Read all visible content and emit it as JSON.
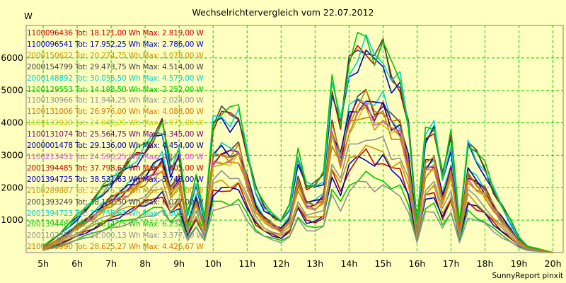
{
  "chart_data": {
    "type": "line",
    "title": "Wechselrichtervergleich vom 22.07.2012",
    "ylabel": "W",
    "credit": "SunnyReport pinxit",
    "xlim": [
      4.5,
      20.3
    ],
    "ylim": [
      0,
      7000
    ],
    "x_ticks": [
      5,
      6,
      7,
      8,
      9,
      10,
      11,
      12,
      13,
      14,
      15,
      16,
      17,
      18,
      19,
      20
    ],
    "x_tick_labels": [
      "5h",
      "6h",
      "7h",
      "8h",
      "9h",
      "10h",
      "11h",
      "12h",
      "13h",
      "14h",
      "15h",
      "16h",
      "17h",
      "18h",
      "19h",
      "20h"
    ],
    "y_ticks": [
      1000,
      2000,
      3000,
      4000,
      5000,
      6000
    ],
    "y_tick_labels": [
      "1000",
      "2000",
      "3000",
      "4000",
      "5000",
      "6000"
    ],
    "grid": true,
    "legend_position": "top-left",
    "x": [
      5.0,
      5.25,
      5.5,
      5.75,
      6.0,
      6.25,
      6.5,
      6.75,
      7.0,
      7.25,
      7.5,
      7.75,
      8.0,
      8.25,
      8.5,
      8.75,
      9.0,
      9.25,
      9.5,
      9.75,
      10.0,
      10.25,
      10.5,
      10.75,
      11.0,
      11.25,
      11.5,
      11.75,
      12.0,
      12.25,
      12.5,
      12.75,
      13.0,
      13.25,
      13.5,
      13.75,
      14.0,
      14.25,
      14.5,
      14.75,
      15.0,
      15.25,
      15.5,
      15.75,
      16.0,
      16.25,
      16.5,
      16.75,
      17.0,
      17.25,
      17.5,
      17.75,
      18.0,
      18.25,
      18.5,
      18.75,
      19.0,
      19.25,
      19.5,
      19.75,
      20.0
    ],
    "profile": [
      0.03,
      0.06,
      0.09,
      0.13,
      0.17,
      0.21,
      0.25,
      0.3,
      0.34,
      0.38,
      0.42,
      0.46,
      0.5,
      0.55,
      0.6,
      0.4,
      0.48,
      0.18,
      0.35,
      0.16,
      0.62,
      0.66,
      0.64,
      0.67,
      0.48,
      0.3,
      0.22,
      0.18,
      0.15,
      0.22,
      0.46,
      0.32,
      0.32,
      0.36,
      0.8,
      0.62,
      0.88,
      0.96,
      1.0,
      0.92,
      0.96,
      0.84,
      0.82,
      0.6,
      0.14,
      0.56,
      0.6,
      0.36,
      0.54,
      0.14,
      0.52,
      0.46,
      0.4,
      0.3,
      0.22,
      0.15,
      0.07,
      0.03,
      0.02,
      0.01,
      0.0
    ],
    "series": [
      {
        "name": "1100096436 Tot: 18.121,00 Wh Max: 2.819,00 W",
        "color": "#c80000",
        "max": 2819
      },
      {
        "name": "1100096541 Tot: 17.952,25 Wh Max: 2.786,00 W",
        "color": "#0000c8",
        "max": 2786
      },
      {
        "name": "2000150622 Tot: 20.274,75 Wh Max: 3.078,00 W",
        "color": "#c89600",
        "max": 3078
      },
      {
        "name": "2000154799 Tot: 29.473,75 Wh Max: 4.514,00 W",
        "color": "#404040",
        "max": 4514
      },
      {
        "name": "2000148892 Tot: 30.056,50 Wh Max: 4.579,00 W",
        "color": "#00d2d2",
        "max": 4579
      },
      {
        "name": "1100129553 Tot: 14.198,50 Wh Max: 2.252,00 W",
        "color": "#00c800",
        "max": 2252
      },
      {
        "name": "1100130966 Tot: 11.944,25 Wh Max: 2.024,00 W",
        "color": "#909090",
        "max": 2024
      },
      {
        "name": "1100131006 Tot: 26.976,00 Wh Max: 4.088,00 W",
        "color": "#d07800",
        "max": 4088
      },
      {
        "name": "1100132020 Tot: 24.843,25 Wh Max: 4.071,00 W",
        "color": "#d2c800",
        "max": 4071
      },
      {
        "name": "1100131074 Tot: 25.564,75 Wh Max: 4.345,00 W",
        "color": "#780078",
        "max": 4345
      },
      {
        "name": "2000001478 Tot: 29.136,00 Wh Max: 4.454,00 W",
        "color": "#000096",
        "max": 4454
      },
      {
        "name": "1100213451 Tot: 24.590,25 Wh Max: 4.111,00 W",
        "color": "#d250d2",
        "max": 4111
      },
      {
        "name": "2001394485 Tot: 37.798,63 Wh Max: 6.005,00 W",
        "color": "#c80000",
        "max": 6005
      },
      {
        "name": "2001394725 Tot: 38.531,63 Wh Max: 5.748,00 W",
        "color": "#0000c8",
        "max": 5748
      },
      {
        "name": "2100289887 Tot: 25.575,13 Wh Max: 4.053,00 W",
        "color": "#c89600",
        "max": 4053
      },
      {
        "name": "2001393249 Tot: 38.151,50 Wh Max: 6.077,00 W",
        "color": "#404040",
        "max": 6077
      },
      {
        "name": "2001394723 Tot: 37.756,63 Wh Max: 6.002,00 W",
        "color": "#00d2d2",
        "max": 6002
      },
      {
        "name": "2001394487 Tot: 39.014,75 Wh Max: 6.232,00 W",
        "color": "#00c800",
        "max": 6232
      },
      {
        "name": "2001102356 Tot: 21.000,13 Wh Max: 3.377,00 W",
        "color": "#909090",
        "max": 3377
      },
      {
        "name": "2100288990 Tot: 28.625,27 Wh Max: 4.426,67 W",
        "color": "#d07800",
        "max": 4426.67
      }
    ]
  }
}
